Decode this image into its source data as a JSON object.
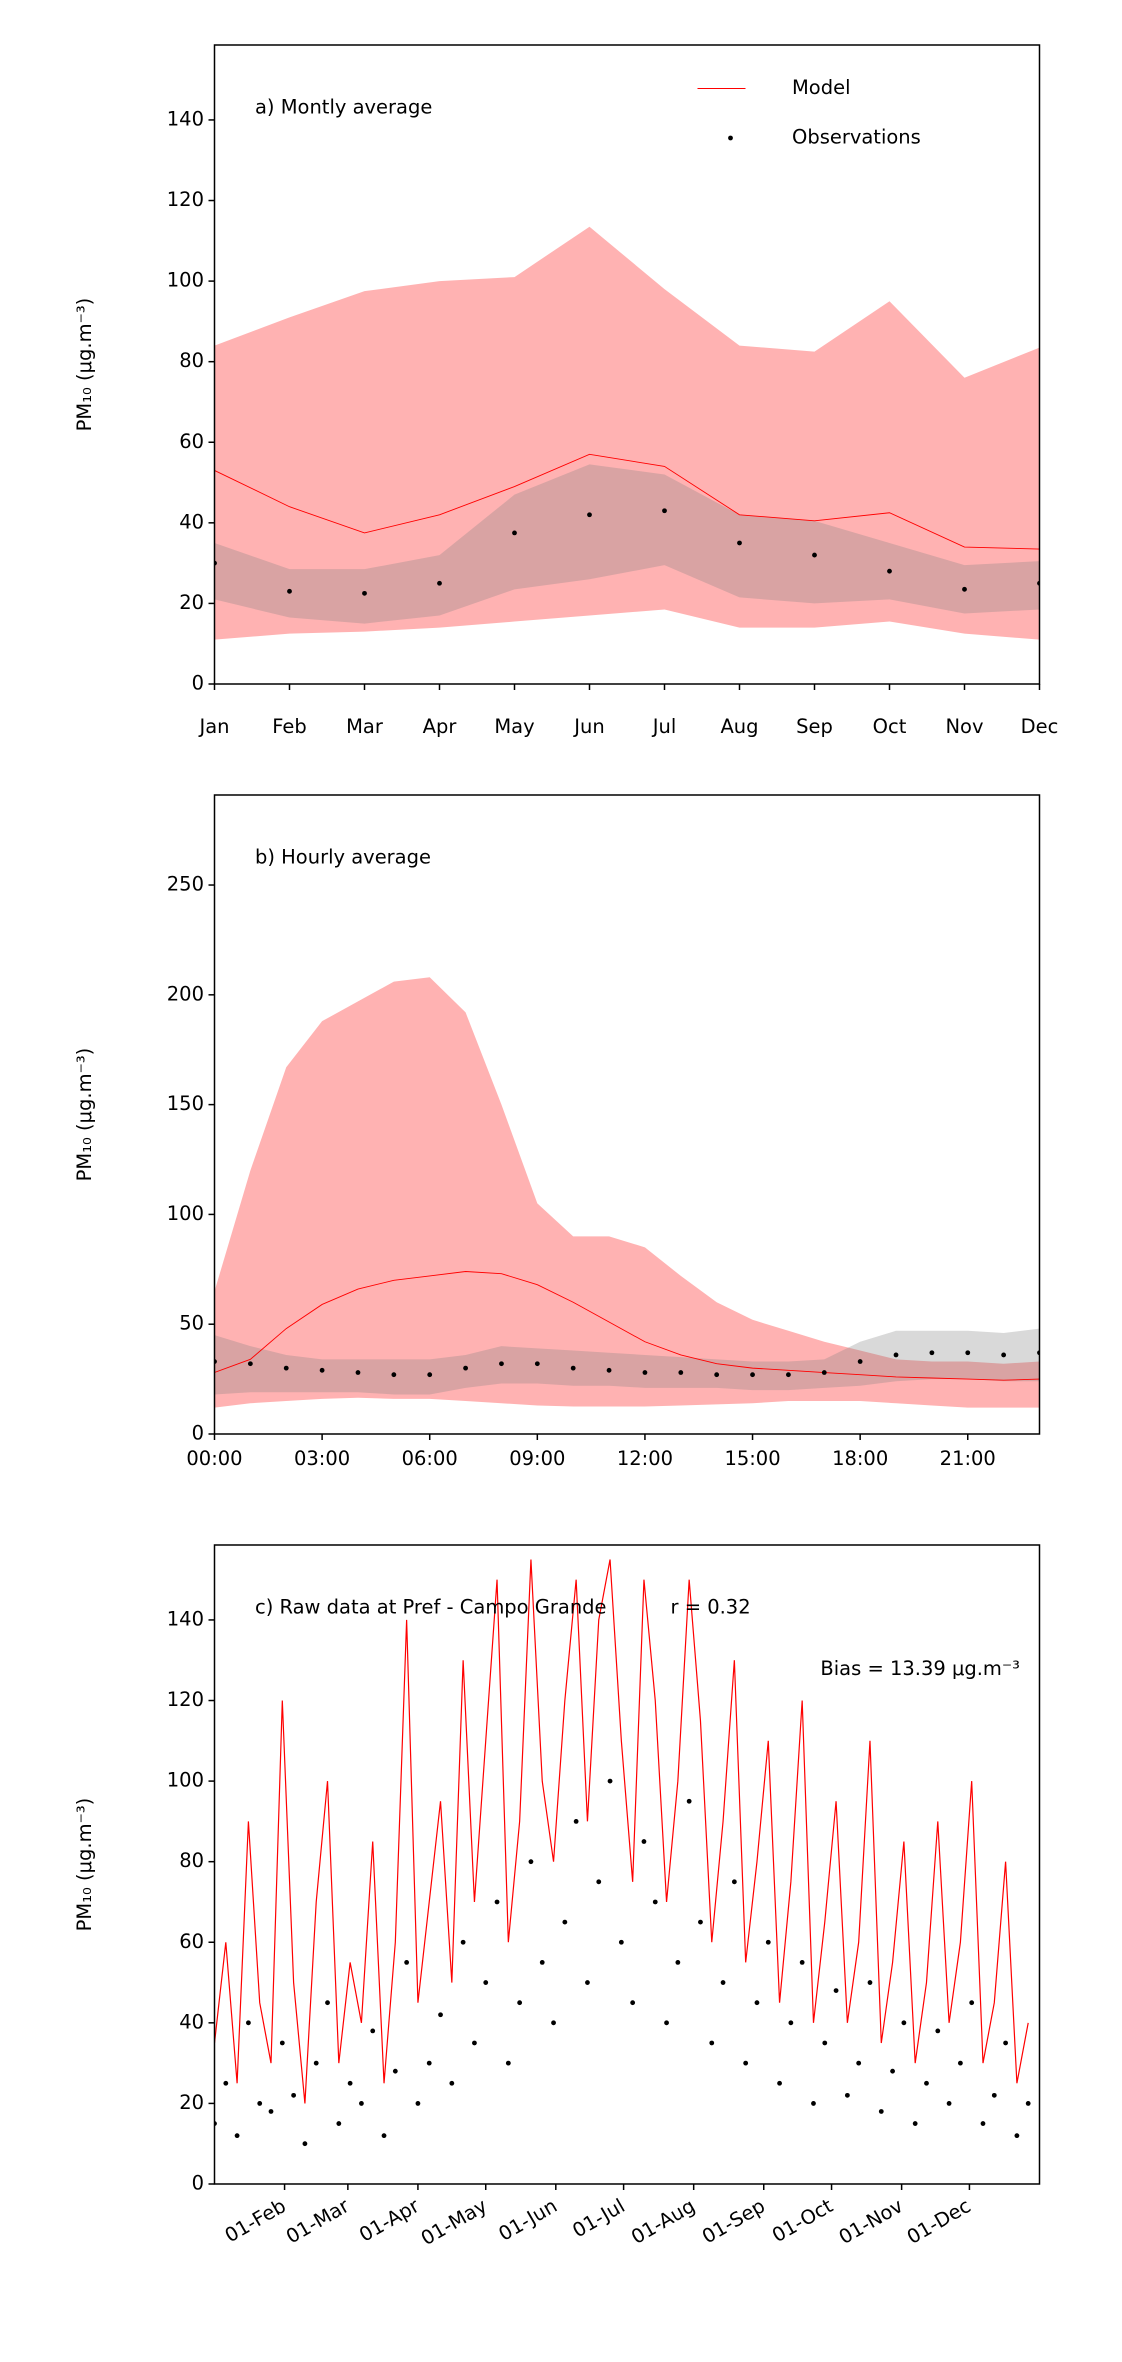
{
  "chart_data": [
    {
      "type": "line",
      "title": "a) Montly average",
      "ylabel": "PM₁₀ (μg.m⁻³)",
      "categories": [
        "Jan",
        "Feb",
        "Mar",
        "Apr",
        "May",
        "Jun",
        "Jul",
        "Aug",
        "Sep",
        "Oct",
        "Nov",
        "Dec"
      ],
      "series": [
        {
          "name": "Model",
          "color": "#ff0000",
          "style": "line",
          "values": [
            53,
            44,
            37.5,
            42,
            49,
            57,
            54,
            42,
            40.5,
            42.5,
            34,
            33.5
          ]
        },
        {
          "name": "Observations",
          "color": "#000000",
          "style": "dots",
          "values": [
            30,
            23,
            22.5,
            25,
            37.5,
            42,
            43,
            35,
            32,
            28,
            23.5,
            25
          ]
        }
      ],
      "bands": [
        {
          "color": "#ff0000",
          "opacity": 0.3,
          "upper": [
            84,
            91,
            97.5,
            100,
            101,
            113.5,
            98,
            84,
            82.5,
            95,
            76,
            83.5
          ],
          "lower": [
            11,
            12.5,
            13,
            14,
            15.5,
            17,
            18.5,
            14,
            14,
            15.5,
            12.5,
            11
          ]
        },
        {
          "color": "#808080",
          "opacity": 0.3,
          "upper": [
            35,
            28.5,
            28.5,
            32,
            47,
            54.5,
            52,
            42,
            40.5,
            35,
            29.5,
            30.5
          ],
          "lower": [
            21,
            16.5,
            15,
            17,
            23.5,
            26,
            29.5,
            21.5,
            20,
            21,
            17.5,
            18.5
          ]
        }
      ],
      "ylim": [
        0,
        158.6
      ],
      "yticks": [
        0,
        20,
        40,
        60,
        80,
        100,
        120,
        140
      ],
      "legend": "upper right"
    },
    {
      "type": "line",
      "title": "b) Hourly average",
      "ylabel": "PM₁₀ (μg.m⁻³)",
      "x": [
        0,
        1,
        2,
        3,
        4,
        5,
        6,
        7,
        8,
        9,
        10,
        11,
        12,
        13,
        14,
        15,
        16,
        17,
        18,
        19,
        20,
        21,
        22,
        23
      ],
      "series": [
        {
          "color": "#ff0000",
          "style": "line",
          "values": [
            28,
            34,
            48,
            59,
            66,
            70,
            72,
            74,
            73,
            68,
            60,
            51,
            42,
            36,
            32,
            30,
            29,
            28,
            27,
            26,
            25.5,
            25,
            24.5,
            25
          ]
        },
        {
          "color": "#000000",
          "style": "dots",
          "values": [
            33,
            32,
            30,
            29,
            28,
            27,
            27,
            30,
            32,
            32,
            30,
            29,
            28,
            28,
            27,
            27,
            27,
            28,
            33,
            36,
            37,
            37,
            36,
            37
          ]
        }
      ],
      "bands": [
        {
          "color": "#ff0000",
          "opacity": 0.3,
          "upper": [
            65,
            120,
            167,
            188,
            197,
            206,
            208,
            192,
            150,
            105,
            90,
            90,
            85,
            72,
            60,
            52,
            47,
            42,
            38,
            34,
            33,
            33,
            32,
            33
          ],
          "lower": [
            12,
            14,
            15,
            16,
            16.5,
            16,
            16,
            15,
            14,
            13,
            12.5,
            12.5,
            12.5,
            13,
            13.5,
            14,
            15,
            15,
            15,
            14,
            13,
            12,
            12,
            12
          ]
        },
        {
          "color": "#808080",
          "opacity": 0.3,
          "upper": [
            45,
            40,
            36,
            34,
            34,
            34,
            34,
            36,
            40,
            39,
            38,
            37,
            36,
            35,
            34,
            33,
            33,
            34,
            42,
            47,
            47,
            47,
            46,
            48
          ],
          "lower": [
            18,
            19,
            19,
            19,
            19,
            18,
            18,
            21,
            23,
            23,
            22,
            22,
            21,
            21,
            21,
            20,
            20,
            21,
            22,
            24,
            25,
            25,
            24,
            24
          ]
        }
      ],
      "xlim": [
        0,
        23
      ],
      "xticks": [
        {
          "value": 0,
          "label": "00:00"
        },
        {
          "value": 3,
          "label": "03:00"
        },
        {
          "value": 6,
          "label": "06:00"
        },
        {
          "value": 9,
          "label": "09:00"
        },
        {
          "value": 12,
          "label": "12:00"
        },
        {
          "value": 15,
          "label": "15:00"
        },
        {
          "value": 18,
          "label": "18:00"
        },
        {
          "value": 21,
          "label": "21:00"
        }
      ],
      "ylim": [
        0,
        291
      ],
      "yticks": [
        0,
        50,
        100,
        150,
        200,
        250
      ]
    },
    {
      "type": "line",
      "title": "c) Raw data at Pref - Campo Grande",
      "ylabel": "PM₁₀ (μg.m⁻³)",
      "annotations": [
        "r = 0.32",
        "Bias = 13.39 μg.m⁻³"
      ],
      "x": [
        0,
        5,
        10,
        15,
        20,
        25,
        30,
        35,
        40,
        45,
        50,
        55,
        60,
        65,
        70,
        75,
        80,
        85,
        90,
        95,
        100,
        105,
        110,
        115,
        120,
        125,
        130,
        135,
        140,
        145,
        150,
        155,
        160,
        165,
        170,
        175,
        180,
        185,
        190,
        195,
        200,
        205,
        210,
        215,
        220,
        225,
        230,
        235,
        240,
        245,
        250,
        255,
        260,
        265,
        270,
        275,
        280,
        285,
        290,
        295,
        300,
        305,
        310,
        315,
        320,
        325,
        330,
        335,
        340,
        345,
        350,
        355,
        360
      ],
      "series": [
        {
          "color": "#ff0000",
          "style": "line",
          "values": [
            35,
            60,
            25,
            90,
            45,
            30,
            120,
            50,
            20,
            70,
            100,
            30,
            55,
            40,
            85,
            25,
            60,
            140,
            45,
            70,
            95,
            50,
            130,
            70,
            110,
            150,
            60,
            90,
            155,
            100,
            80,
            120,
            150,
            90,
            140,
            155,
            110,
            75,
            150,
            120,
            70,
            100,
            150,
            115,
            60,
            90,
            130,
            55,
            80,
            110,
            45,
            75,
            120,
            40,
            65,
            95,
            40,
            60,
            110,
            35,
            55,
            85,
            30,
            50,
            90,
            40,
            60,
            100,
            30,
            45,
            80,
            25,
            40
          ]
        },
        {
          "color": "#000000",
          "style": "dots",
          "values": [
            15,
            25,
            12,
            40,
            20,
            18,
            35,
            22,
            10,
            30,
            45,
            15,
            25,
            20,
            38,
            12,
            28,
            55,
            20,
            30,
            42,
            25,
            60,
            35,
            50,
            70,
            30,
            45,
            80,
            55,
            40,
            65,
            90,
            50,
            75,
            100,
            60,
            45,
            85,
            70,
            40,
            55,
            95,
            65,
            35,
            50,
            75,
            30,
            45,
            60,
            25,
            40,
            55,
            20,
            35,
            48,
            22,
            30,
            50,
            18,
            28,
            40,
            15,
            25,
            38,
            20,
            30,
            45,
            15,
            22,
            35,
            12,
            20
          ]
        }
      ],
      "xlim": [
        0,
        365
      ],
      "xticks": [
        {
          "value": 31,
          "label": "01-Feb"
        },
        {
          "value": 59,
          "label": "01-Mar"
        },
        {
          "value": 90,
          "label": "01-Apr"
        },
        {
          "value": 120,
          "label": "01-May"
        },
        {
          "value": 151,
          "label": "01-Jun"
        },
        {
          "value": 181,
          "label": "01-Jul"
        },
        {
          "value": 212,
          "label": "01-Aug"
        },
        {
          "value": 243,
          "label": "01-Sep"
        },
        {
          "value": 273,
          "label": "01-Oct"
        },
        {
          "value": 304,
          "label": "01-Nov"
        },
        {
          "value": 334,
          "label": "01-Dec"
        }
      ],
      "ylim": [
        0,
        158.6
      ],
      "yticks": [
        0,
        20,
        40,
        60,
        80,
        100,
        120,
        140
      ]
    }
  ]
}
